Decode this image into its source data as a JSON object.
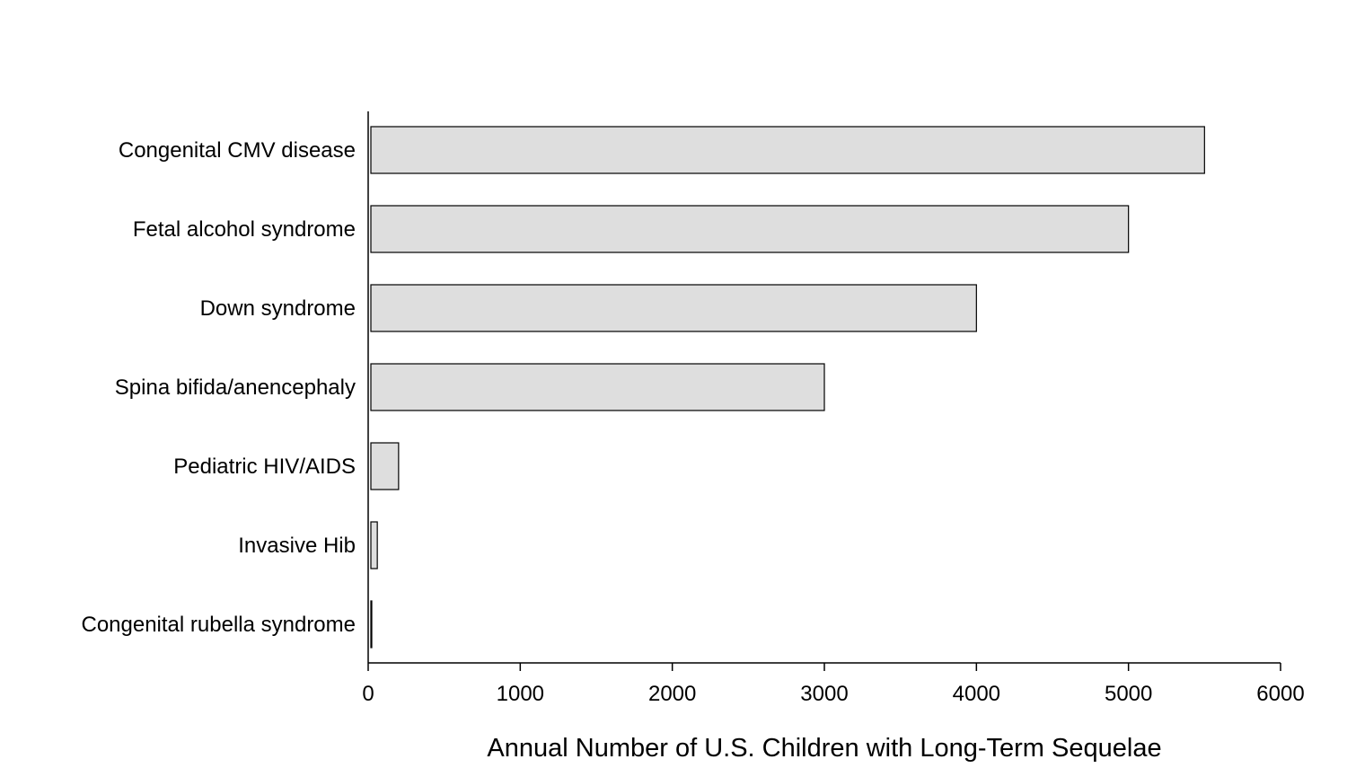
{
  "chart_data": {
    "type": "bar",
    "orientation": "horizontal",
    "categories": [
      "Congenital CMV disease",
      "Fetal alcohol syndrome",
      "Down syndrome",
      "Spina bifida/anencephaly",
      "Pediatric HIV/AIDS",
      "Invasive Hib",
      "Congenital rubella syndrome"
    ],
    "values": [
      5500,
      5000,
      4000,
      3000,
      200,
      60,
      10
    ],
    "title": "",
    "xlabel": "Annual Number of U.S. Children with Long-Term Sequelae",
    "ylabel": "",
    "xlim": [
      0,
      6000
    ],
    "xticks": [
      "0",
      "1000",
      "2000",
      "3000",
      "4000",
      "5000",
      "6000"
    ],
    "grid": false,
    "legend": "none",
    "bar_color": "#dedede",
    "bar_edge_color": "#000000"
  }
}
